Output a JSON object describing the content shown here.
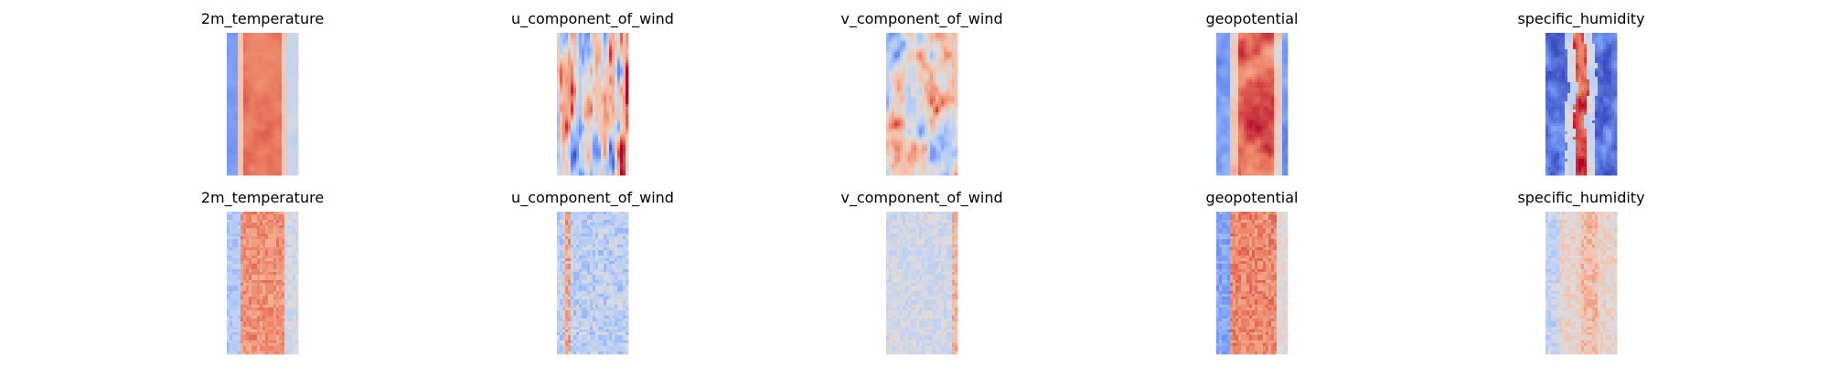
{
  "chart_data": {
    "type": "heatmap",
    "colormap": "coolwarm",
    "colormap_stops": [
      "#3b4cc0",
      "#7396f5",
      "#b0cbfc",
      "#dddcdc",
      "#f6bfa6",
      "#ec7f63",
      "#b40426"
    ],
    "axes_visible": false,
    "rows": [
      {
        "panels": [
          {
            "title": "2m_temperature",
            "pattern": "warm-band"
          },
          {
            "title": "u_component_of_wind",
            "pattern": "streaks"
          },
          {
            "title": "v_component_of_wind",
            "pattern": "eddies"
          },
          {
            "title": "geopotential",
            "pattern": "warm-band-soft"
          },
          {
            "title": "specific_humidity",
            "pattern": "narrow-core"
          }
        ]
      },
      {
        "panels": [
          {
            "title": "2m_temperature",
            "pattern": "blocky-warm"
          },
          {
            "title": "u_component_of_wind",
            "pattern": "blocky-neutral"
          },
          {
            "title": "v_component_of_wind",
            "pattern": "blocky-faint"
          },
          {
            "title": "geopotential",
            "pattern": "blocky-warm-edge"
          },
          {
            "title": "specific_humidity",
            "pattern": "blocky-pink"
          }
        ]
      }
    ]
  }
}
